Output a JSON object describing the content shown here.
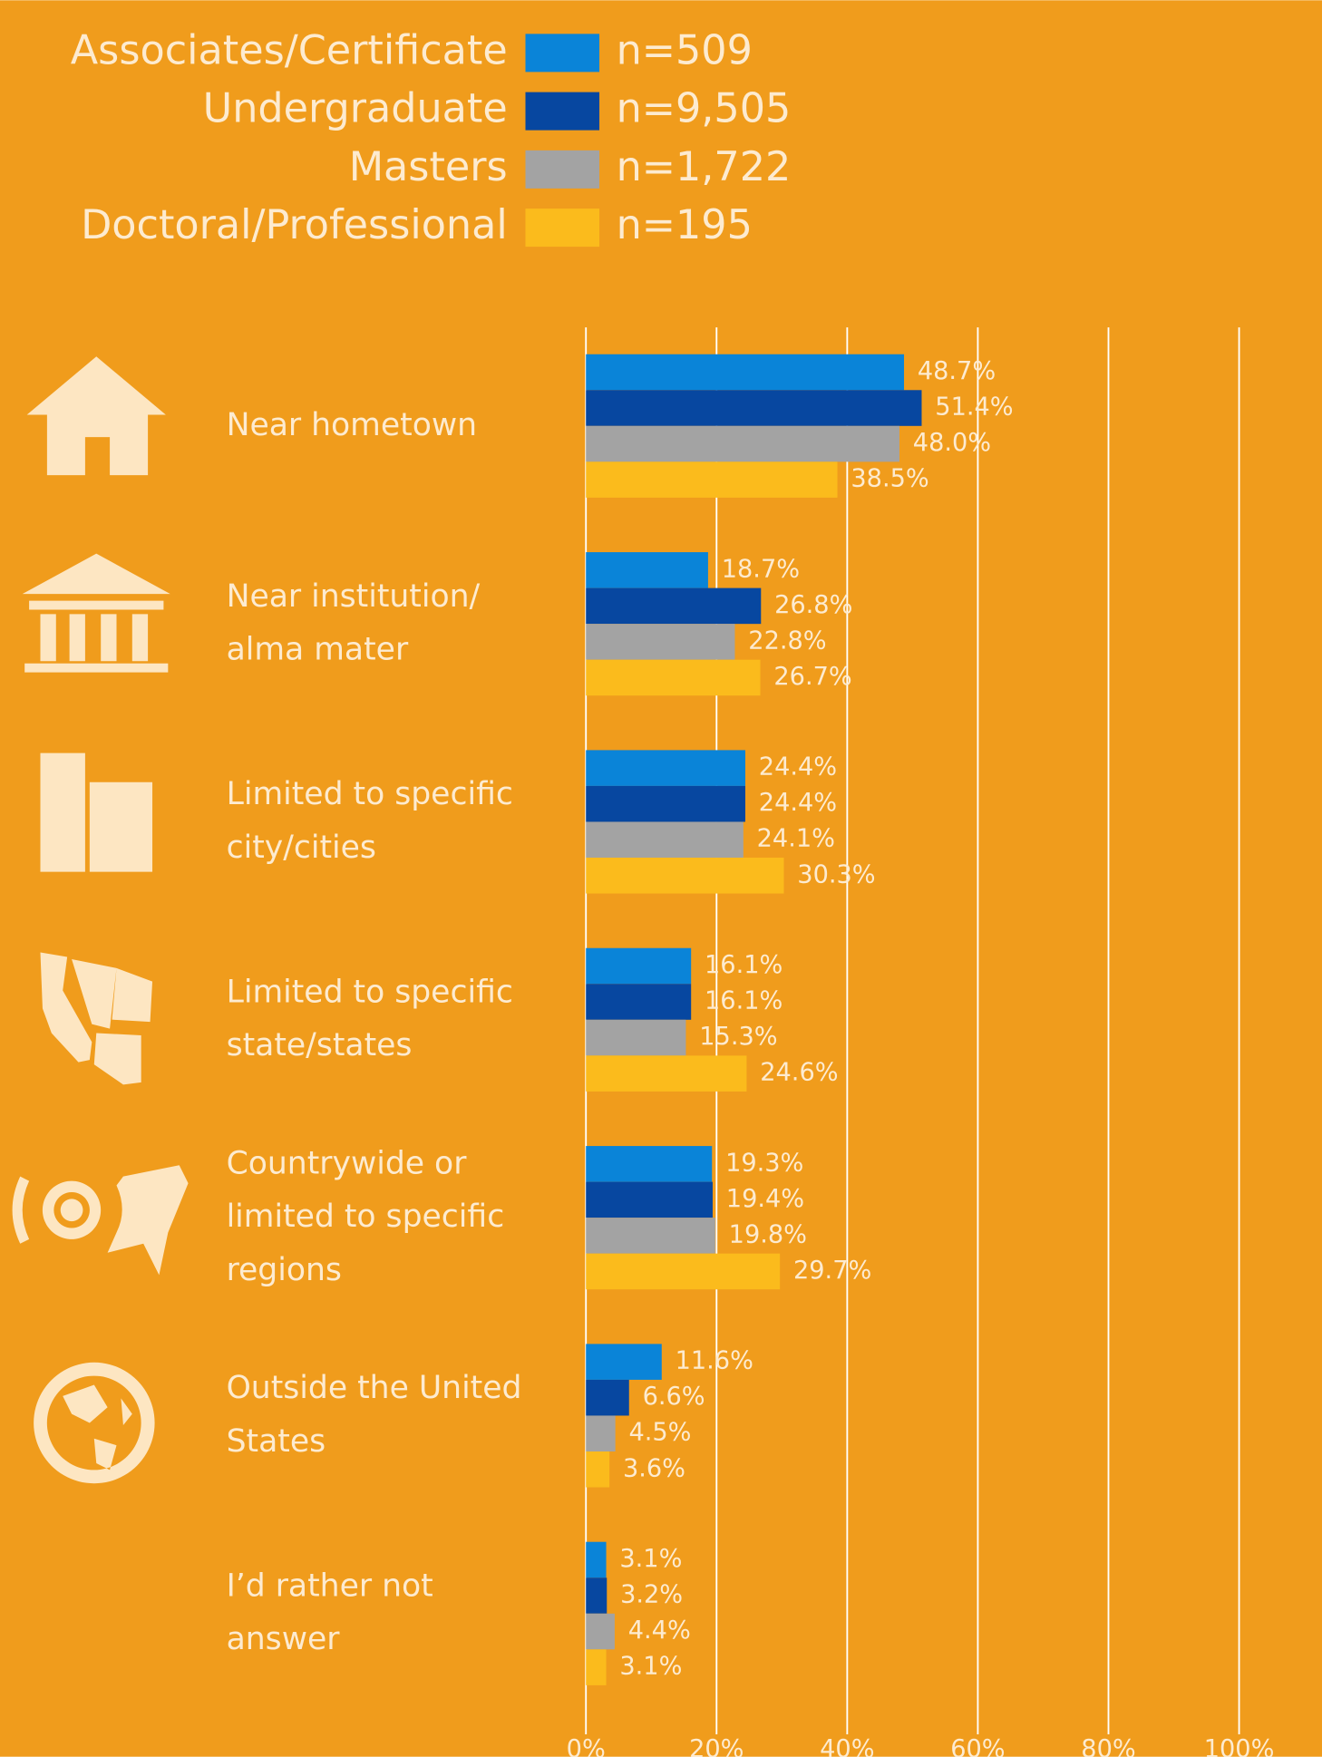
{
  "chart_data": {
    "type": "hbar",
    "background": "#f09c1c",
    "categories": [
      "Near hometown",
      "Near institution/ alma mater",
      "Limited to specific city/cities",
      "Limited to specific state/states",
      "Countrywide or limited to specific regions",
      "Outside the United States",
      "I’d rather not answer"
    ],
    "series": [
      {
        "name": "Associates/Certificate",
        "sample": "n=509",
        "color": "#0a84d8",
        "values": [
          48.7,
          18.7,
          24.4,
          16.1,
          19.3,
          11.6,
          3.1
        ],
        "value_labels": [
          "48.7%",
          "18.7%",
          "24.4%",
          "16.1%",
          "19.3%",
          "11.6%",
          "3.1%"
        ]
      },
      {
        "name": "Undergraduate",
        "sample": "n=9,505",
        "color": "#0747a0",
        "values": [
          51.4,
          26.8,
          24.4,
          16.1,
          19.4,
          6.6,
          3.2
        ],
        "value_labels": [
          "51.4%",
          "26.8%",
          "24.4%",
          "16.1%",
          "19.4%",
          "6.6%",
          "3.2%"
        ]
      },
      {
        "name": "Masters",
        "sample": "n=1,722",
        "color": "#a3a3a3",
        "values": [
          48.0,
          22.8,
          24.1,
          15.3,
          19.8,
          4.5,
          4.4
        ],
        "value_labels": [
          "48.0%",
          "22.8%",
          "24.1%",
          "15.3%",
          "19.8%",
          "4.5%",
          "4.4%"
        ]
      },
      {
        "name": "Doctoral/Professional",
        "sample": "n=195",
        "color": "#fbbb1c",
        "values": [
          38.5,
          26.7,
          30.3,
          24.6,
          29.7,
          3.6,
          3.1
        ],
        "value_labels": [
          "38.5%",
          "26.7%",
          "30.3%",
          "24.6%",
          "29.7%",
          "3.6%",
          "3.1%"
        ]
      }
    ],
    "xlim": [
      0,
      100
    ],
    "xticks": [
      {
        "value": 0,
        "label": "0%"
      },
      {
        "value": 20,
        "label": "20%"
      },
      {
        "value": 40,
        "label": "40%"
      },
      {
        "value": 60,
        "label": "60%"
      },
      {
        "value": 80,
        "label": "80%"
      },
      {
        "value": 100,
        "label": "100%"
      }
    ],
    "grid": true
  }
}
